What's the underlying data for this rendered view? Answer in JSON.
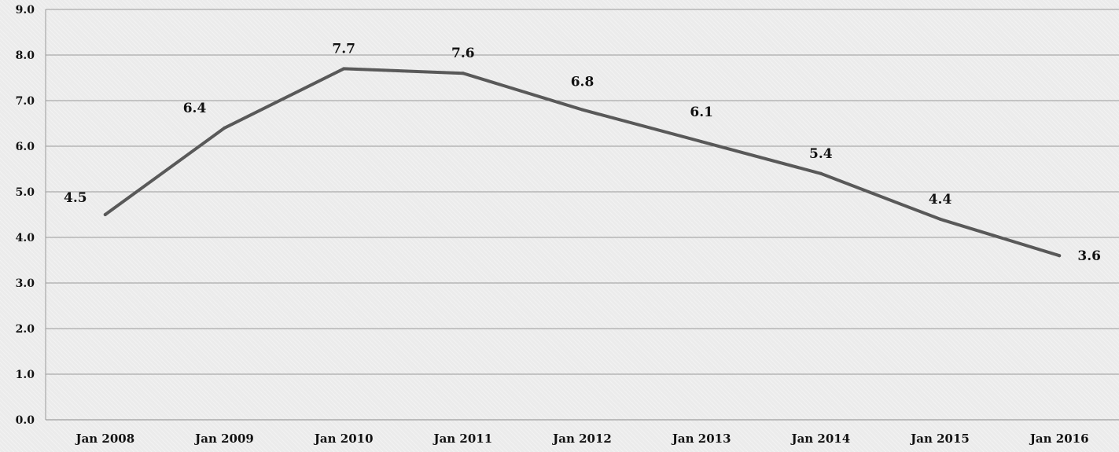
{
  "chart_data": {
    "type": "line",
    "title": "",
    "xlabel": "",
    "ylabel": "",
    "categories": [
      "Jan 2008",
      "Jan 2009",
      "Jan 2010",
      "Jan 2011",
      "Jan 2012",
      "Jan 2013",
      "Jan 2014",
      "Jan 2015",
      "Jan 2016"
    ],
    "series": [
      {
        "values": [
          4.5,
          6.4,
          7.7,
          7.6,
          6.8,
          6.1,
          5.4,
          4.4,
          3.6
        ],
        "color": "#595959"
      }
    ],
    "data_labels": [
      "4.5",
      "6.4",
      "7.7",
      "7.6",
      "6.8",
      "6.1",
      "5.4",
      "4.4",
      "3.6"
    ],
    "y_ticks": [
      "0.0",
      "1.0",
      "2.0",
      "3.0",
      "4.0",
      "5.0",
      "6.0",
      "7.0",
      "8.0",
      "9.0"
    ],
    "ylim": [
      0,
      9
    ],
    "grid": true,
    "legend": "none"
  }
}
